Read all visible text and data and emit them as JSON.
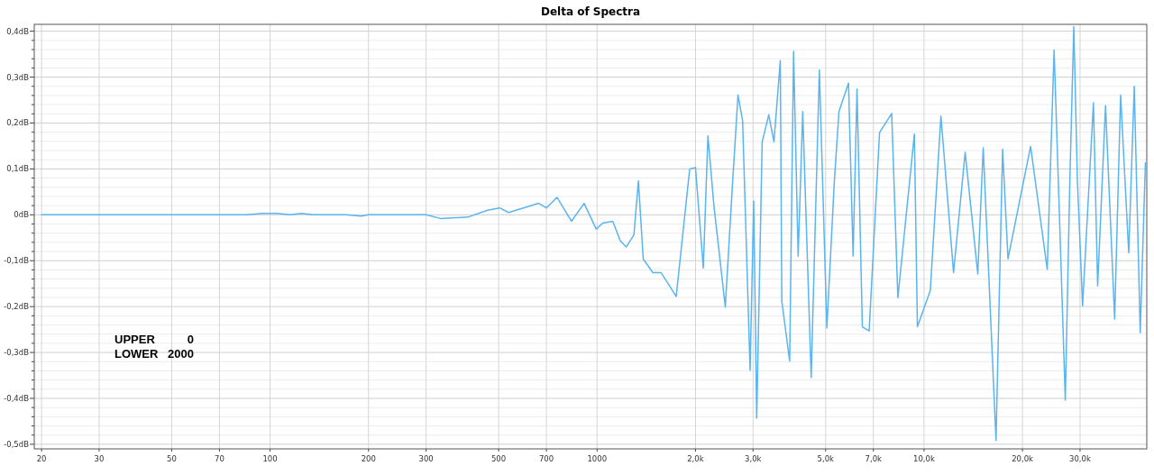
{
  "chart_data": {
    "type": "line",
    "title": "Delta of Spectra",
    "log": "x",
    "grid": true,
    "marker": "none",
    "line_style": "solid",
    "annotations": [
      "UPPER 0",
      "LOWER 2000"
    ],
    "xlim": [
      19,
      48000
    ],
    "xticks": [
      20,
      30,
      50,
      70,
      100,
      200,
      300,
      500,
      700,
      1000,
      {
        "value": 2000,
        "label": "2,0k"
      },
      {
        "value": 3000,
        "label": "3,0k"
      },
      {
        "value": 5000,
        "label": "5,0k"
      },
      {
        "value": 7000,
        "label": "7,0k"
      },
      {
        "value": 10000,
        "label": "10,0k"
      },
      {
        "value": 20000,
        "label": "20,0k"
      },
      {
        "value": 30000,
        "label": "30,0k"
      }
    ],
    "ylim": [
      -0.51,
      0.415
    ],
    "yticks": [
      {
        "value": -0.5,
        "label": "-0,5dB"
      },
      {
        "value": -0.48,
        "label": null
      },
      {
        "value": -0.46,
        "label": null
      },
      {
        "value": -0.44,
        "label": null
      },
      {
        "value": -0.42,
        "label": null
      },
      {
        "value": -0.4,
        "label": "-0,4dB"
      },
      {
        "value": -0.38,
        "label": null
      },
      {
        "value": -0.36,
        "label": null
      },
      {
        "value": -0.34,
        "label": null
      },
      {
        "value": -0.32,
        "label": null
      },
      {
        "value": -0.3,
        "label": "-0,3dB"
      },
      {
        "value": -0.28,
        "label": null
      },
      {
        "value": -0.26,
        "label": null
      },
      {
        "value": -0.24,
        "label": null
      },
      {
        "value": -0.22,
        "label": null
      },
      {
        "value": -0.2,
        "label": "-0,2dB"
      },
      {
        "value": -0.18,
        "label": null
      },
      {
        "value": -0.16,
        "label": null
      },
      {
        "value": -0.14,
        "label": null
      },
      {
        "value": -0.12,
        "label": null
      },
      {
        "value": -0.1,
        "label": "-0,1dB"
      },
      {
        "value": -0.08,
        "label": null
      },
      {
        "value": -0.06,
        "label": null
      },
      {
        "value": -0.04,
        "label": null
      },
      {
        "value": -0.02,
        "label": null
      },
      {
        "value": 0,
        "label": "0dB"
      },
      {
        "value": 0.02,
        "label": null
      },
      {
        "value": 0.04,
        "label": null
      },
      {
        "value": 0.06,
        "label": null
      },
      {
        "value": 0.08,
        "label": null
      },
      {
        "value": 0.1,
        "label": "0,1dB"
      },
      {
        "value": 0.12,
        "label": null
      },
      {
        "value": 0.14,
        "label": null
      },
      {
        "value": 0.16,
        "label": null
      },
      {
        "value": 0.18,
        "label": null
      },
      {
        "value": 0.2,
        "label": "0,2dB"
      },
      {
        "value": 0.22,
        "label": null
      },
      {
        "value": 0.24,
        "label": null
      },
      {
        "value": 0.26,
        "label": null
      },
      {
        "value": 0.28,
        "label": null
      },
      {
        "value": 0.3,
        "label": "0,3dB"
      },
      {
        "value": 0.32,
        "label": null
      },
      {
        "value": 0.34,
        "label": null
      },
      {
        "value": 0.36,
        "label": null
      },
      {
        "value": 0.38,
        "label": null
      },
      {
        "value": 0.4,
        "label": "0,4dB"
      }
    ],
    "series": [
      {
        "color": "#5ab4f0",
        "x": [
          20,
          85,
          95,
          105,
          115,
          125,
          135,
          170,
          190,
          200,
          250,
          300,
          332,
          403,
          462,
          503,
          537,
          663,
          700,
          754,
          835,
          913,
          994,
          1041,
          1117,
          1178,
          1229,
          1296,
          1338,
          1384,
          1481,
          1569,
          1746,
          1920,
          2000,
          2113,
          2183,
          2277,
          2467,
          2587,
          2698,
          2787,
          2938,
          3013,
          3078,
          3199,
          3350,
          3475,
          3634,
          3673,
          3882,
          3990,
          4121,
          4256,
          4517,
          4785,
          5044,
          5318,
          5493,
          5875,
          6068,
          6237,
          6477,
          6793,
          7310,
          7963,
          8317,
          9342,
          9544,
          10450,
          11262,
          12310,
          13360,
          14600,
          15170,
          16600,
          17390,
          18060,
          21180,
          23810,
          24990,
          25920,
          27040,
          27920,
          28710,
          29450,
          30540,
          32970,
          33960,
          35890,
          38280,
          39920,
          42270,
          43950,
          45830,
          47530
        ],
        "values": [
          0,
          0,
          0.003,
          0.003,
          0,
          0.003,
          0,
          0,
          -0.003,
          0,
          0,
          0,
          -0.008,
          -0.005,
          0.01,
          0.015,
          0.005,
          0.025,
          0.015,
          0.038,
          -0.014,
          0.025,
          -0.031,
          -0.018,
          -0.014,
          -0.057,
          -0.07,
          -0.044,
          0.074,
          -0.096,
          -0.126,
          -0.126,
          -0.178,
          0.1,
          0.103,
          -0.116,
          0.172,
          0.02,
          -0.201,
          0.05,
          0.261,
          0.205,
          -0.339,
          0.03,
          -0.443,
          0.159,
          0.218,
          0.159,
          0.336,
          -0.188,
          -0.319,
          0.356,
          -0.09,
          0.225,
          -0.355,
          0.316,
          -0.247,
          0.074,
          0.225,
          0.287,
          -0.09,
          0.274,
          -0.244,
          -0.253,
          0.179,
          0.221,
          -0.181,
          0.176,
          -0.244,
          -0.165,
          0.215,
          -0.126,
          0.136,
          -0.129,
          0.146,
          -0.492,
          0.143,
          -0.096,
          0.149,
          -0.119,
          0.359,
          0.009,
          -0.404,
          0.074,
          0.41,
          0.074,
          -0.198,
          0.244,
          -0.155,
          0.238,
          -0.227,
          0.261,
          -0.083,
          0.28,
          -0.257,
          0.113
        ]
      }
    ]
  }
}
